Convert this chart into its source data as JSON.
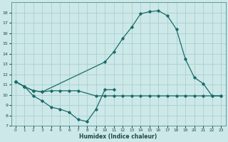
{
  "xlabel": "Humidex (Indice chaleur)",
  "bg_color": "#cde8e8",
  "grid_color": "#aacfcf",
  "line_color": "#1a6b6b",
  "xlim": [
    -0.5,
    23.5
  ],
  "ylim": [
    7,
    19
  ],
  "yticks": [
    7,
    8,
    9,
    10,
    11,
    12,
    13,
    14,
    15,
    16,
    17,
    18
  ],
  "xticks": [
    0,
    1,
    2,
    3,
    4,
    5,
    6,
    7,
    8,
    9,
    10,
    11,
    12,
    13,
    14,
    15,
    16,
    17,
    18,
    19,
    20,
    21,
    22,
    23
  ],
  "line1_x": [
    0,
    1,
    2,
    3,
    4,
    5,
    6,
    7,
    8,
    9,
    10,
    11
  ],
  "line1_y": [
    11.3,
    10.8,
    9.9,
    9.4,
    8.8,
    8.6,
    8.3,
    7.6,
    7.4,
    8.6,
    10.5,
    10.5
  ],
  "line2_x": [
    0,
    1,
    2,
    3,
    4,
    5,
    6,
    7,
    9,
    10,
    11,
    12,
    13,
    14,
    15,
    16,
    17,
    18,
    19,
    20,
    21,
    22,
    23
  ],
  "line2_y": [
    11.3,
    10.8,
    10.4,
    10.3,
    10.4,
    10.4,
    10.4,
    10.4,
    9.9,
    9.9,
    9.9,
    9.9,
    9.9,
    9.9,
    9.9,
    9.9,
    9.9,
    9.9,
    9.9,
    9.9,
    9.9,
    9.9,
    9.9
  ],
  "line3_x": [
    0,
    1,
    2,
    3,
    10,
    11,
    12,
    13,
    14,
    15,
    16,
    17,
    18,
    19,
    20,
    21,
    22,
    23
  ],
  "line3_y": [
    11.3,
    10.8,
    10.4,
    10.3,
    13.2,
    14.2,
    15.5,
    16.6,
    17.9,
    18.1,
    18.2,
    17.7,
    16.4,
    13.5,
    11.7,
    11.1,
    9.9,
    9.9
  ]
}
